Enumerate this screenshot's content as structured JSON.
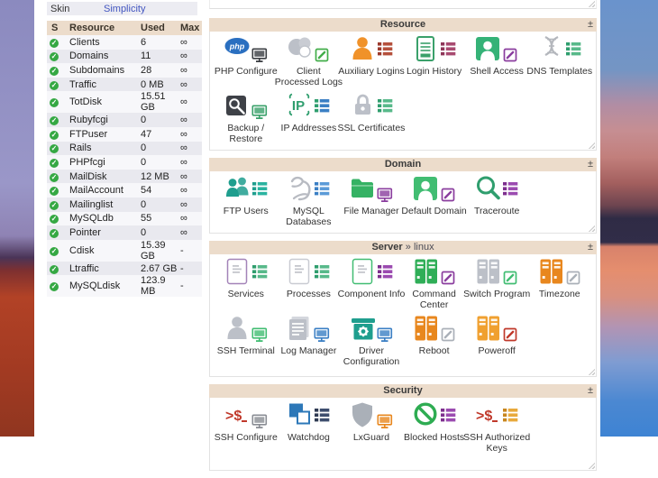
{
  "ui": {
    "collapse_label": "±",
    "check_glyph": "✓",
    "colors": {
      "panel_header_bg": "#ecdccb",
      "row_light": "#f7f7fa",
      "row_dark": "#e9e9ef",
      "link_blue": "#4356c0",
      "status_green": "#35a843"
    }
  },
  "sidebar": {
    "skin_label": "Skin",
    "skin_value": "Simplicity",
    "columns": [
      "S",
      "Resource",
      "Used",
      "Max"
    ],
    "rows": [
      {
        "name": "Clients",
        "used": "6",
        "max": "∞"
      },
      {
        "name": "Domains",
        "used": "11",
        "max": "∞"
      },
      {
        "name": "Subdomains",
        "used": "28",
        "max": "∞"
      },
      {
        "name": "Traffic",
        "used": "0 MB",
        "max": "∞"
      },
      {
        "name": "TotDisk",
        "used": "15.51 GB",
        "max": "∞"
      },
      {
        "name": "Rubyfcgi",
        "used": "0",
        "max": "∞"
      },
      {
        "name": "FTPuser",
        "used": "47",
        "max": "∞"
      },
      {
        "name": "Rails",
        "used": "0",
        "max": "∞"
      },
      {
        "name": "PHPfcgi",
        "used": "0",
        "max": "∞"
      },
      {
        "name": "MailDisk",
        "used": "12 MB",
        "max": "∞"
      },
      {
        "name": "MailAccount",
        "used": "54",
        "max": "∞"
      },
      {
        "name": "Mailinglist",
        "used": "0",
        "max": "∞"
      },
      {
        "name": "MySQLdb",
        "used": "55",
        "max": "∞"
      },
      {
        "name": "Pointer",
        "used": "0",
        "max": "∞"
      },
      {
        "name": "Cdisk",
        "used": "15.39 GB",
        "max": "-"
      },
      {
        "name": "Ltraffic",
        "used": "2.67 GB",
        "max": "-"
      },
      {
        "name": "MySQLdisk",
        "used": "123.9 MB",
        "max": "-"
      }
    ]
  },
  "panels": [
    {
      "id": "resource",
      "title": "Resource",
      "subtitle": "",
      "items": [
        {
          "label": "PHP Configure",
          "shape": "php",
          "color": "#2a6fc0",
          "badge": "monitor",
          "bcolor": "#3a3d42",
          "bcolor2": ""
        },
        {
          "label": "Client Processed Logs",
          "shape": "cloud",
          "color": "#bcc0c8",
          "badge": "pencil",
          "bcolor": "#41ad49",
          "bcolor2": ""
        },
        {
          "label": "Auxiliary Logins",
          "shape": "person",
          "color": "#f0922a",
          "badge": "list",
          "bcolor": "#9c3a2c",
          "bcolor2": "#b5503c"
        },
        {
          "label": "Login History",
          "shape": "door",
          "color": "#3aa06a",
          "badge": "list",
          "bcolor": "#8e3558",
          "bcolor2": "#a84a70"
        },
        {
          "label": "Shell Access",
          "shape": "personbox",
          "color": "#35b277",
          "badge": "pencil",
          "bcolor": "#8a3d9e",
          "bcolor2": ""
        },
        {
          "label": "DNS Templates",
          "shape": "dna",
          "color": "#b4b7bd",
          "badge": "list",
          "bcolor": "#2f9e6e",
          "bcolor2": "#58b98a"
        },
        {
          "label": "Backup / Restore",
          "shape": "backupbox",
          "color": "#3e4147",
          "badge": "monitor",
          "bcolor": "#3aa06a",
          "bcolor2": ""
        },
        {
          "label": "IP Addresses",
          "shape": "iptext",
          "color": "#2f9e6e",
          "badge": "list",
          "bcolor": "#2f9e6e",
          "bcolor2": "#3b7fc4"
        },
        {
          "label": "SSL Certificates",
          "shape": "lock",
          "color": "#bcc0c8",
          "badge": "list",
          "bcolor": "#2f9e6e",
          "bcolor2": "#58b98a"
        }
      ]
    },
    {
      "id": "domain",
      "title": "Domain",
      "subtitle": "",
      "items": [
        {
          "label": "FTP Users",
          "shape": "people",
          "color": "#1f9e8e",
          "badge": "list",
          "bcolor": "#1f9e8e",
          "bcolor2": "#2ab3a0"
        },
        {
          "label": "MySQL Databases",
          "shape": "dolphin",
          "color": "#b8bbc2",
          "badge": "list",
          "bcolor": "#3b7fc4",
          "bcolor2": "#5b9bd8"
        },
        {
          "label": "File Manager",
          "shape": "folder",
          "color": "#35b264",
          "badge": "monitor",
          "bcolor": "#8a3d9e",
          "bcolor2": ""
        },
        {
          "label": "Default Domain",
          "shape": "personbox",
          "color": "#41bd72",
          "badge": "pencil",
          "bcolor": "#8a3d9e",
          "bcolor2": ""
        },
        {
          "label": "Traceroute",
          "shape": "magnifier",
          "color": "#2f9e6e",
          "badge": "list",
          "bcolor": "#7d2f8e",
          "bcolor2": "#9b4bb0"
        }
      ]
    },
    {
      "id": "server",
      "title": "Server",
      "subtitle": "» linux",
      "items": [
        {
          "label": "Services",
          "shape": "docbox",
          "color": "#a383b8",
          "badge": "list",
          "bcolor": "#2f9e6e",
          "bcolor2": "#58b98a"
        },
        {
          "label": "Processes",
          "shape": "docbox",
          "color": "#c9cbd2",
          "badge": "list",
          "bcolor": "#2f9e6e",
          "bcolor2": "#58b98a"
        },
        {
          "label": "Component Info",
          "shape": "docbox",
          "color": "#41bd72",
          "badge": "list",
          "bcolor": "#7d2f8e",
          "bcolor2": "#9b4bb0"
        },
        {
          "label": "Command Center",
          "shape": "servers",
          "color": "#2fae57",
          "badge": "pencil",
          "bcolor": "#8a3d9e",
          "bcolor2": ""
        },
        {
          "label": "Switch Program",
          "shape": "servers",
          "color": "#bcc0c8",
          "badge": "pencil",
          "bcolor": "#41bd72",
          "bcolor2": ""
        },
        {
          "label": "Timezone",
          "shape": "servers",
          "color": "#e8871e",
          "badge": "pencil",
          "bcolor": "#aab0b8",
          "bcolor2": ""
        },
        {
          "label": "SSH Terminal",
          "shape": "person",
          "color": "#bcc0c8",
          "badge": "monitor",
          "bcolor": "#41bd72",
          "bcolor2": ""
        },
        {
          "label": "Log Manager",
          "shape": "docs",
          "color": "#bcc0c8",
          "badge": "monitor",
          "bcolor": "#3b7fc4",
          "bcolor2": ""
        },
        {
          "label": "Driver Configuration",
          "shape": "gearbox",
          "color": "#1f9e8e",
          "badge": "monitor",
          "bcolor": "#3b7fc4",
          "bcolor2": ""
        },
        {
          "label": "Reboot",
          "shape": "servers",
          "color": "#e8871e",
          "badge": "pencil",
          "bcolor": "#aab0b8",
          "bcolor2": ""
        },
        {
          "label": "Poweroff",
          "shape": "servers",
          "color": "#f0a030",
          "badge": "pencil",
          "bcolor": "#c0392b",
          "bcolor2": ""
        }
      ]
    },
    {
      "id": "security",
      "title": "Security",
      "subtitle": "",
      "items": [
        {
          "label": "SSH Configure",
          "shape": "shelltext",
          "color": "#c0392b",
          "badge": "monitor",
          "bcolor": "#8a8d94",
          "bcolor2": ""
        },
        {
          "label": "Watchdog",
          "shape": "squares",
          "color": "#2d78b8",
          "badge": "list",
          "bcolor": "#2e3a52",
          "bcolor2": "#3e4e6e"
        },
        {
          "label": "LxGuard",
          "shape": "shield",
          "color": "#aab0b8",
          "badge": "monitor",
          "bcolor": "#e8871e",
          "bcolor2": ""
        },
        {
          "label": "Blocked Hosts",
          "shape": "block",
          "color": "#2eac52",
          "badge": "list",
          "bcolor": "#7d2f8e",
          "bcolor2": "#9b4bb0"
        },
        {
          "label": "SSH Authorized Keys",
          "shape": "shelltext",
          "color": "#c0392b",
          "badge": "list",
          "bcolor": "#c8861e",
          "bcolor2": "#e8a93c"
        }
      ]
    }
  ]
}
